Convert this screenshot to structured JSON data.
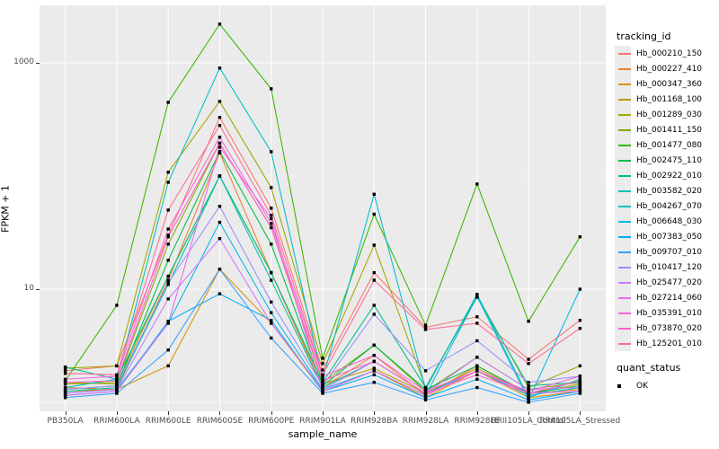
{
  "figure": {
    "panel_bg": "#EBEBEB",
    "grid_color": "#FFFFFF",
    "tick_color": "#333333",
    "axis_text_color": "#4D4D4D",
    "marker_color": "#000000"
  },
  "chart_data": {
    "type": "line",
    "title": "",
    "xlabel": "sample_name",
    "ylabel": "FPKM + 1",
    "y_scale": "log10",
    "ylim": [
      0.83,
      3240
    ],
    "y_major_ticks": [
      10,
      1000
    ],
    "y_major_tick_labels": [
      "10",
      "1000"
    ],
    "y_minor_ticks": [
      1,
      100
    ],
    "grid": true,
    "legend_position": "right",
    "legend_title": "tracking_id",
    "point_legend": {
      "title": "quant_status",
      "items": [
        "OK"
      ],
      "marker": "black-square"
    },
    "categories": [
      "PB350LA",
      "RRIM600LA",
      "RRIM600LE",
      "RRIM600SE",
      "RRIM600PE",
      "RRIM901LA",
      "RRIM928BA",
      "RRIM928LA",
      "RRIM928LE",
      "RRII105LA_Control",
      "RRII105LA_Stressed"
    ],
    "series": [
      {
        "name": "Hb_000210_150",
        "color": "#F8766D",
        "values": [
          1.9,
          2.1,
          30,
          330,
          52,
          1.93,
          14,
          4.6,
          5.7,
          2.4,
          5.3
        ]
      },
      {
        "name": "Hb_000227_410",
        "color": "#EA8331",
        "values": [
          1.35,
          1.3,
          12,
          160,
          14,
          1.35,
          2.6,
          1.15,
          2.1,
          1.2,
          1.3
        ]
      },
      {
        "name": "Hb_000347_360",
        "color": "#D89000",
        "values": [
          1.25,
          1.3,
          2.1,
          15,
          5.0,
          1.25,
          1.9,
          1.1,
          1.9,
          1.1,
          1.25
        ]
      },
      {
        "name": "Hb_001168_100",
        "color": "#C09B00",
        "values": [
          1.5,
          1.45,
          13,
          100,
          14,
          1.45,
          2.0,
          1.2,
          2.0,
          1.2,
          1.45
        ]
      },
      {
        "name": "Hb_001289_030",
        "color": "#A3A500",
        "values": [
          2.0,
          2.1,
          108,
          456,
          79,
          2.2,
          24.5,
          1.35,
          8.8,
          1.35,
          2.1
        ]
      },
      {
        "name": "Hb_001411_150",
        "color": "#7CAE00",
        "values": [
          1.45,
          1.5,
          25,
          195,
          35,
          1.5,
          3.2,
          1.25,
          2.5,
          1.3,
          1.5
        ]
      },
      {
        "name": "Hb_001477_080",
        "color": "#39B600",
        "values": [
          1.55,
          7.2,
          448,
          2200,
          590,
          2.45,
          46,
          4.8,
          85,
          5.2,
          29
        ]
      },
      {
        "name": "Hb_002475_110",
        "color": "#00BB4E",
        "values": [
          1.3,
          1.4,
          18,
          165,
          25,
          1.4,
          3.2,
          1.3,
          2.1,
          1.2,
          1.4
        ]
      },
      {
        "name": "Hb_002922_010",
        "color": "#00C087",
        "values": [
          2.05,
          1.6,
          13,
          100,
          14,
          1.5,
          7.2,
          1.35,
          8.5,
          1.4,
          1.5
        ]
      },
      {
        "name": "Hb_003582_020",
        "color": "#00C1A9",
        "values": [
          1.25,
          1.35,
          11,
          100,
          12,
          1.35,
          2.3,
          1.2,
          1.9,
          1.15,
          1.35
        ]
      },
      {
        "name": "Hb_004267_070",
        "color": "#00BFC4",
        "values": [
          1.35,
          1.6,
          88,
          900,
          164,
          1.6,
          69,
          1.3,
          9.0,
          1.1,
          1.6
        ]
      },
      {
        "name": "Hb_006648_030",
        "color": "#00B8E7",
        "values": [
          1.2,
          1.3,
          5.0,
          39,
          6.2,
          1.3,
          1.9,
          1.15,
          8.6,
          1.05,
          10
        ]
      },
      {
        "name": "Hb_007383_050",
        "color": "#00ACFC",
        "values": [
          1.15,
          1.25,
          5.2,
          9.1,
          5.3,
          1.25,
          1.75,
          1.1,
          1.6,
          1.05,
          1.25
        ]
      },
      {
        "name": "Hb_009707_010",
        "color": "#35A2FF",
        "values": [
          1.1,
          1.2,
          2.9,
          15,
          3.7,
          1.2,
          1.5,
          1.05,
          1.35,
          1.0,
          1.2
        ]
      },
      {
        "name": "Hb_010417_120",
        "color": "#9590FF",
        "values": [
          1.3,
          1.4,
          11.4,
          54,
          7.7,
          1.4,
          6.0,
          1.9,
          3.5,
          1.5,
          1.7
        ]
      },
      {
        "name": "Hb_025477_020",
        "color": "#C77CFF",
        "values": [
          1.2,
          1.3,
          8.2,
          28,
          5.0,
          1.3,
          2.3,
          1.2,
          2.5,
          1.3,
          1.35
        ]
      },
      {
        "name": "Hb_027214_060",
        "color": "#E76BF3",
        "values": [
          1.15,
          1.25,
          5.0,
          180,
          42,
          1.25,
          1.9,
          1.15,
          1.9,
          1.2,
          1.25
        ]
      },
      {
        "name": "Hb_035391_010",
        "color": "#FA62DB",
        "values": [
          1.6,
          1.7,
          34,
          220,
          38,
          1.7,
          2.6,
          1.25,
          1.9,
          1.25,
          1.7
        ]
      },
      {
        "name": "Hb_073870_020",
        "color": "#FF61C9",
        "values": [
          1.5,
          1.55,
          29,
          195,
          35,
          1.55,
          2.3,
          1.2,
          1.75,
          1.2,
          1.55
        ]
      },
      {
        "name": "Hb_125201_010",
        "color": "#FF6A98",
        "values": [
          1.8,
          1.75,
          50,
          280,
          45,
          1.75,
          12,
          4.4,
          5.0,
          2.2,
          4.5
        ]
      }
    ]
  }
}
